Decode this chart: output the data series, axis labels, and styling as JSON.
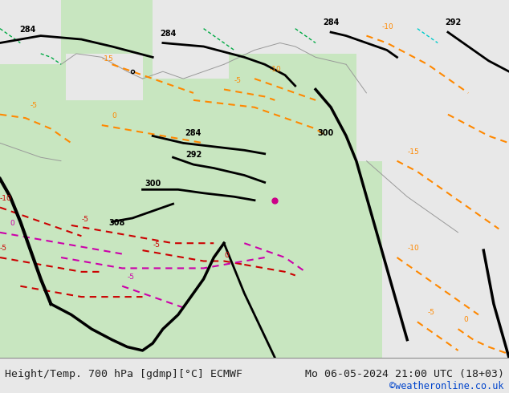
{
  "title_left": "Height/Temp. 700 hPa [gdmp][°C] ECMWF",
  "title_right": "Mo 06-05-2024 21:00 UTC (18+03)",
  "credit": "©weatheronline.co.uk",
  "fig_width": 6.34,
  "fig_height": 4.9,
  "dpi": 100,
  "map_bg_color": "#c8e6c0",
  "sea_color": "#e8e8e8",
  "border_color": "#aaaaaa",
  "bottom_bar_color": "#f0f0f0",
  "bottom_text_color": "#222222",
  "credit_color": "#0044cc",
  "title_fontsize": 9.5,
  "credit_fontsize": 8.5,
  "contour_black_color": "#000000",
  "contour_orange_color": "#ff8800",
  "contour_red_color": "#cc0000",
  "contour_pink_color": "#cc00aa",
  "contour_green_color": "#00aa44",
  "label_fontsize": 7
}
